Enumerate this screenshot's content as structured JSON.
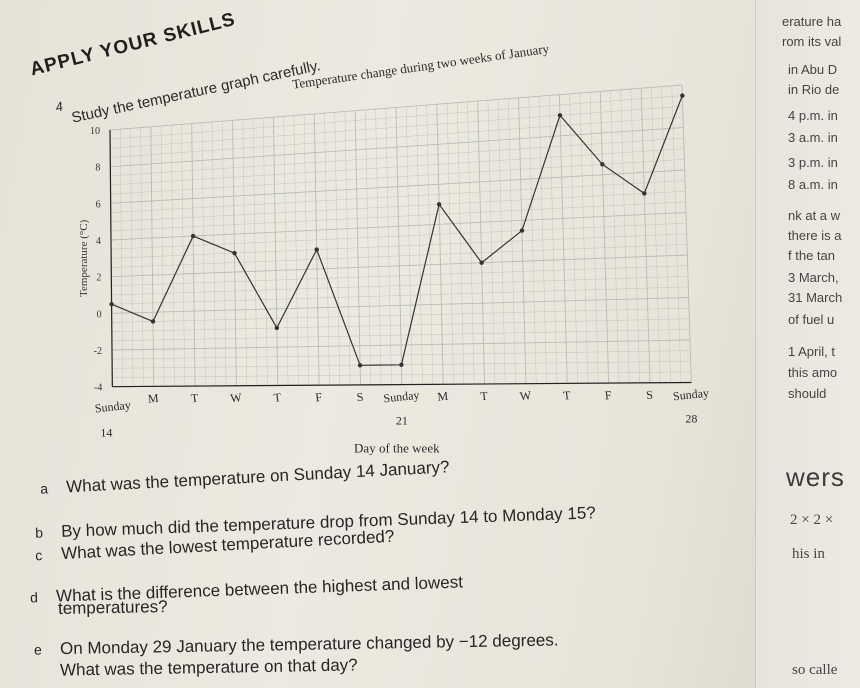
{
  "heading": "APPLY YOUR SKILLS",
  "question_number": "4",
  "instruction": "Study the temperature graph carefully.",
  "chart_data": {
    "type": "line",
    "title": "Temperature change during two weeks of January",
    "xlabel": "Day of the week",
    "ylabel": "Temperature (°C)",
    "ylim": [
      -4,
      10
    ],
    "yticks": [
      "-4",
      "-2",
      "0",
      "2",
      "4",
      "6",
      "8",
      "10"
    ],
    "categories": [
      "Sunday",
      "M",
      "T",
      "W",
      "T",
      "F",
      "S",
      "Sunday",
      "M",
      "T",
      "W",
      "T",
      "F",
      "S",
      "Sunday"
    ],
    "date_labels": [
      {
        "index": 0,
        "label": "14"
      },
      {
        "index": 7,
        "label": "21"
      },
      {
        "index": 14,
        "label": "28"
      }
    ],
    "x": [
      0,
      1,
      2,
      3,
      4,
      5,
      6,
      7,
      8,
      9,
      10,
      11,
      12,
      13,
      14
    ],
    "values": [
      0.5,
      -0.5,
      4,
      3,
      -1,
      3,
      -3,
      -3,
      5,
      2,
      3.5,
      9,
      6.5,
      5,
      9.5
    ],
    "grid": true,
    "line_color": "#333333",
    "grid_color": "#b8bdb8"
  },
  "questions": [
    {
      "letter": "a",
      "text": "What was the temperature on Sunday 14 January?"
    },
    {
      "letter": "b",
      "text": "By how much did the temperature drop from Sunday 14 to Monday 15?"
    },
    {
      "letter": "c",
      "text": "What was the lowest temperature recorded?"
    },
    {
      "letter": "d",
      "text": "What is the difference between the highest and lowest"
    },
    {
      "letter": "",
      "text": "temperatures?"
    },
    {
      "letter": "e",
      "text": "On Monday 29 January the temperature changed by −12 degrees."
    },
    {
      "letter": "",
      "text": "What was the temperature on that day?"
    }
  ],
  "right_strip": {
    "lines": [
      "erature ha",
      "rom its val",
      "in Abu D",
      "in Rio de",
      "4 p.m. in",
      "3 a.m. in",
      "3 p.m. in",
      "8 a.m. in",
      "nk at a w",
      "there is a",
      "f the tan",
      "3 March,",
      "31 March",
      "of fuel u",
      "1 April, t",
      "this amo",
      "should"
    ],
    "answers_word": "wers",
    "formula": "2 × 2 ×",
    "tail_1": "his in",
    "tail_2": "so calle"
  }
}
